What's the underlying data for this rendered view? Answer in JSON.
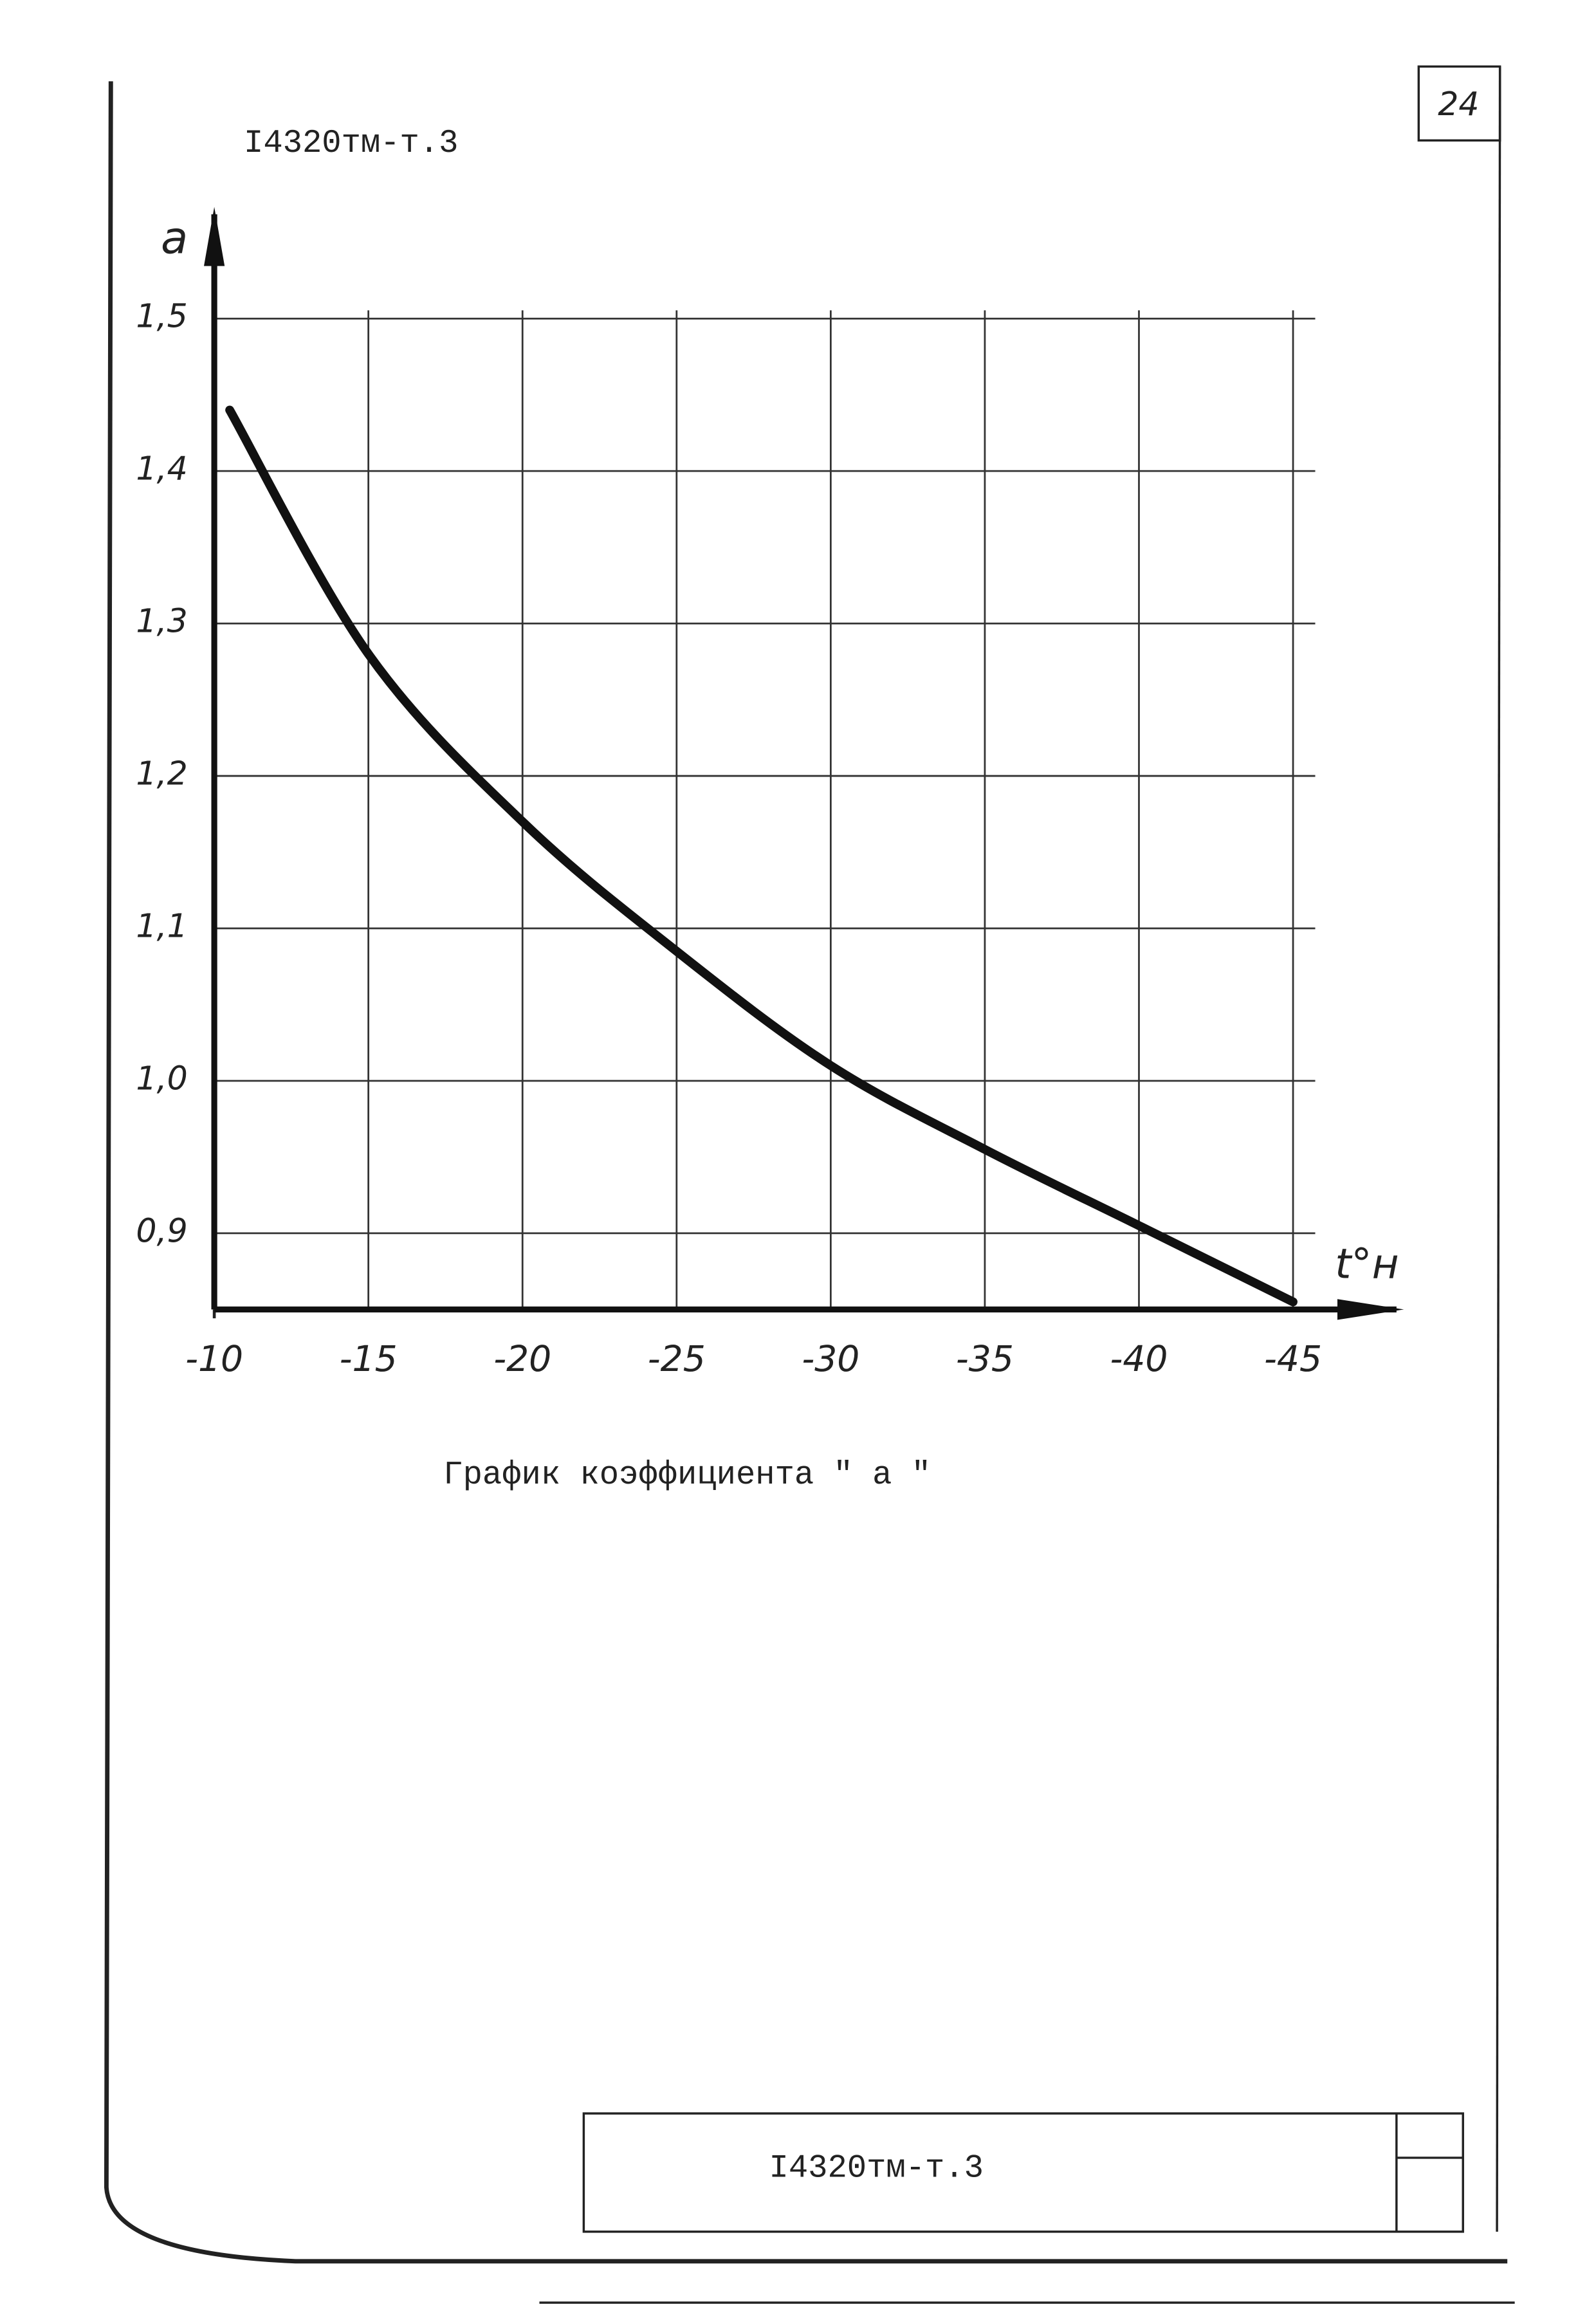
{
  "header": {
    "code": "I4320тм-т.3",
    "page_number": "24"
  },
  "chart_data": {
    "type": "line",
    "y_label": "a",
    "x_label": "t°н",
    "caption": "График коэффициента \" a \"",
    "x": [
      -10.5,
      -15,
      -20,
      -25,
      -30,
      -35,
      -40,
      -45
    ],
    "series": [
      {
        "color": "#111111",
        "values": [
          1.44,
          1.28,
          1.17,
          1.085,
          1.01,
          0.955,
          0.905,
          0.855
        ]
      }
    ],
    "xlim": [
      -10,
      -45
    ],
    "xticks": [
      -10,
      -15,
      -20,
      -25,
      -30,
      -35,
      -40,
      -45
    ],
    "ylim": [
      0.85,
      1.55
    ],
    "yticks": [
      {
        "value": 0.9,
        "label": "0,9"
      },
      {
        "value": 1.0,
        "label": "1,0"
      },
      {
        "value": 1.1,
        "label": "1,1"
      },
      {
        "value": 1.2,
        "label": "1,2"
      },
      {
        "value": 1.3,
        "label": "1,3"
      },
      {
        "value": 1.4,
        "label": "1,4"
      },
      {
        "value": 1.5,
        "label": "1,5"
      }
    ],
    "grid": true
  },
  "footer": {
    "stamp": "I4320тм-т.3"
  }
}
